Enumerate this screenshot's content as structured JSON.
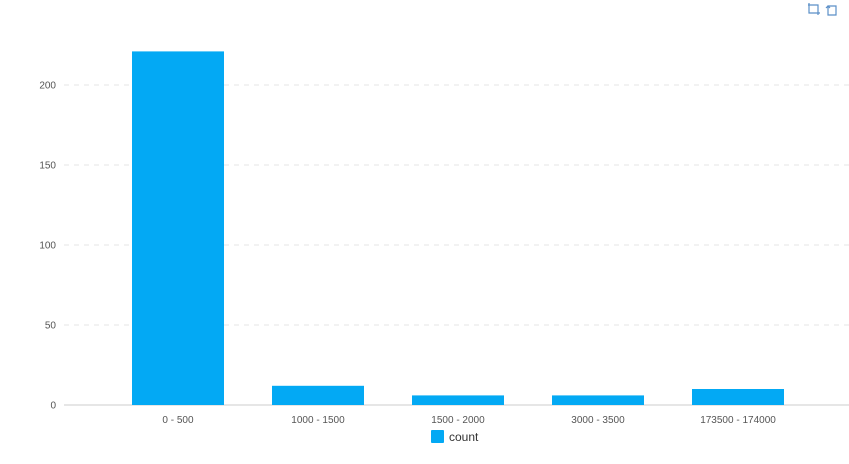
{
  "chart_data": {
    "type": "bar",
    "categories": [
      "0 - 500",
      "1000 - 1500",
      "1500 - 2000",
      "3000 - 3500",
      "173500 - 174000"
    ],
    "series": [
      {
        "name": "count",
        "values": [
          221,
          12,
          6,
          6,
          10
        ]
      }
    ],
    "ylim": [
      0,
      220
    ],
    "yticks": [
      "0",
      "50",
      "100",
      "150",
      "200"
    ],
    "ytick_values": [
      0,
      50,
      100,
      150,
      200
    ],
    "legend": "bottom-center",
    "grid": true
  },
  "colors": {
    "bar": "#03a9f4",
    "grid": "#e6e6e6",
    "axis": "#cccccc",
    "tool_icon": "#5b8fc7"
  },
  "toolbar": {
    "icons": [
      "zoom-area-icon",
      "zoom-reset-icon"
    ]
  }
}
